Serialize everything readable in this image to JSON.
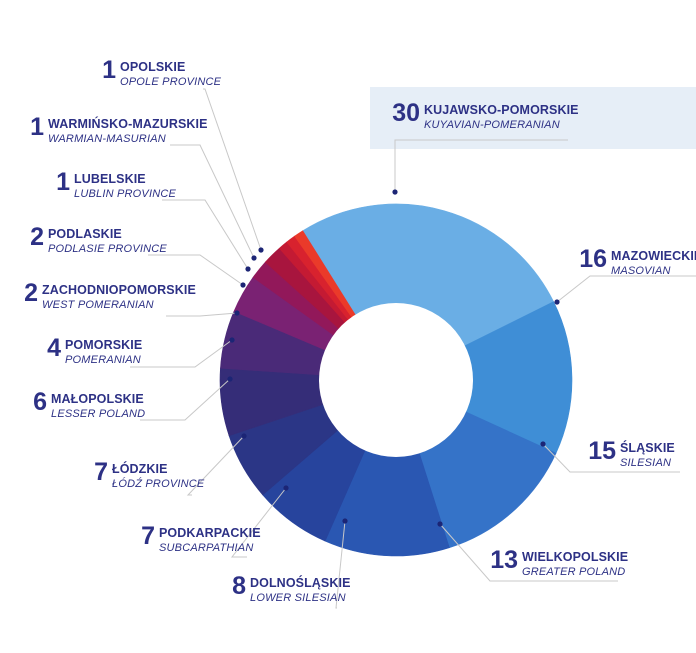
{
  "colors": {
    "text": "#2d3185",
    "rule": "#c8c8c8",
    "highlight": "#e6eef7",
    "dot": "#1c2575",
    "hole": "#ffffff"
  },
  "chart_data": {
    "type": "pie",
    "title": "",
    "categories": [
      "KUJAWSKO-POMORSKIE",
      "MAZOWIECKIE",
      "ŚLĄSKIE",
      "WIELKOPOLSKIE",
      "DOLNOŚLĄSKIE",
      "PODKARPACKIE",
      "ŁÓDZKIE",
      "MAŁOPOLSKIE",
      "POMORSKIE",
      "ZACHODNIOPOMORSKIE",
      "PODLASKIE",
      "LUBELSKIE",
      "WARMIŃSKO-MAZURSKIE",
      "OPOLSKIE"
    ],
    "values": [
      30,
      16,
      15,
      13,
      8,
      7,
      7,
      6,
      4,
      2,
      2,
      1,
      1,
      1
    ],
    "slices": [
      {
        "value": 30,
        "name": "KUJAWSKO-POMORSKIE",
        "name_en": "KUYAVIAN-POMERANIAN",
        "color": "#6aaee5",
        "highlighted": true
      },
      {
        "value": 16,
        "name": "MAZOWIECKIE",
        "name_en": "MASOVIAN",
        "color": "#3f8ed6"
      },
      {
        "value": 15,
        "name": "ŚLĄSKIE",
        "name_en": "SILESIAN",
        "color": "#3573c8"
      },
      {
        "value": 13,
        "name": "WIELKOPOLSKIE",
        "name_en": "GREATER POLAND",
        "color": "#2a57b2"
      },
      {
        "value": 8,
        "name": "DOLNOŚLĄSKIE",
        "name_en": "LOWER SILESIAN",
        "color": "#27449d"
      },
      {
        "value": 7,
        "name": "PODKARPACKIE",
        "name_en": "SUBCARPATHIAN",
        "color": "#2b3686"
      },
      {
        "value": 7,
        "name": "ŁÓDZKIE",
        "name_en": "ŁÓDŹ PROVINCE",
        "color": "#352d78"
      },
      {
        "value": 6,
        "name": "MAŁOPOLSKIE",
        "name_en": "LESSER POLAND",
        "color": "#4a2a78"
      },
      {
        "value": 4,
        "name": "POMORSKIE",
        "name_en": "POMERANIAN",
        "color": "#7a2273"
      },
      {
        "value": 2,
        "name": "ZACHODNIOPOMORSKIE",
        "name_en": "WEST POMERANIAN",
        "color": "#92185a"
      },
      {
        "value": 2,
        "name": "PODLASKIE",
        "name_en": "PODLASIE PROVINCE",
        "color": "#a8153e"
      },
      {
        "value": 1,
        "name": "LUBELSKIE",
        "name_en": "LUBLIN PROVINCE",
        "color": "#c41a33"
      },
      {
        "value": 1,
        "name": "WARMIŃSKO-MAZURSKIE",
        "name_en": "WARMIAN-MASURIAN",
        "color": "#d8222e"
      },
      {
        "value": 1,
        "name": "OPOLSKIE",
        "name_en": "OPOLE PROVINCE",
        "color": "#ea3a2a"
      }
    ],
    "start_angle_deg": -122,
    "direction": "clockwise",
    "donut": true,
    "legend": "none"
  }
}
